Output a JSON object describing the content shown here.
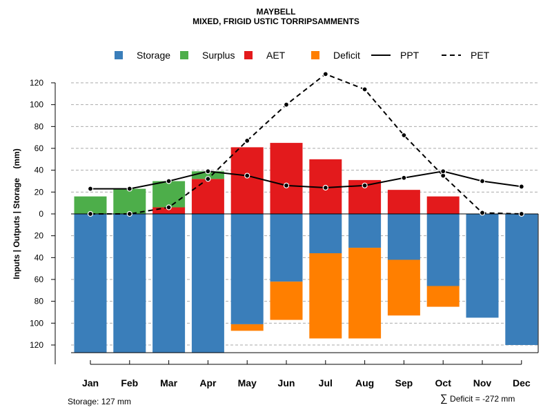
{
  "chart_data": {
    "type": "bar",
    "title": "MAYBELL",
    "subtitle": "MIXED, FRIGID USTIC TORRIPSAMMENTS",
    "ylabel": "Inputs | Outputs | Storage    (mm)",
    "categories": [
      "Jan",
      "Feb",
      "Mar",
      "Apr",
      "May",
      "Jun",
      "Jul",
      "Aug",
      "Sep",
      "Oct",
      "Nov",
      "Dec"
    ],
    "ylim": [
      -127,
      135
    ],
    "yticks": [
      120,
      100,
      80,
      60,
      40,
      20,
      0,
      20,
      40,
      60,
      80,
      100,
      120
    ],
    "ytick_values": [
      120,
      100,
      80,
      60,
      40,
      20,
      0,
      -20,
      -40,
      -60,
      -80,
      -100,
      -120
    ],
    "legend": [
      {
        "label": "Storage",
        "kind": "box",
        "color": "#3A7EBA"
      },
      {
        "label": "Surplus",
        "kind": "box",
        "color": "#4DAE4A"
      },
      {
        "label": "AET",
        "kind": "box",
        "color": "#E31A1C"
      },
      {
        "label": "Deficit",
        "kind": "box",
        "color": "#FF7F00"
      },
      {
        "label": "PPT",
        "kind": "solid",
        "color": "#000000"
      },
      {
        "label": "PET",
        "kind": "dashed",
        "color": "#000000"
      }
    ],
    "series": [
      {
        "name": "AET",
        "color": "#E31A1C",
        "values": [
          0,
          0,
          6,
          32,
          61,
          65,
          50,
          31,
          22,
          16,
          0,
          0
        ]
      },
      {
        "name": "Surplus",
        "color": "#4DAE4A",
        "values": [
          16,
          23,
          24,
          7,
          0,
          0,
          0,
          0,
          0,
          0,
          0,
          0
        ]
      },
      {
        "name": "Storage",
        "color": "#3A7EBA",
        "values": [
          127,
          127,
          127,
          127,
          101,
          62,
          36,
          31,
          42,
          66,
          95,
          120
        ]
      },
      {
        "name": "Deficit",
        "color": "#FF7F00",
        "values": [
          0,
          0,
          0,
          0,
          6,
          35,
          78,
          83,
          51,
          19,
          0,
          0
        ]
      },
      {
        "name": "PPT",
        "color": "#000000",
        "values": [
          23,
          23,
          30,
          39,
          35,
          26,
          24,
          26,
          33,
          39,
          30,
          25
        ]
      },
      {
        "name": "PET",
        "color": "#000000",
        "values": [
          0,
          0,
          6,
          32,
          67,
          100,
          128,
          114,
          72,
          35,
          1,
          0
        ]
      }
    ],
    "grid": true
  },
  "footnotes": {
    "storage": "Storage: 127 mm",
    "deficit_symbol": "∑",
    "deficit": "Deficit = -272 mm"
  }
}
